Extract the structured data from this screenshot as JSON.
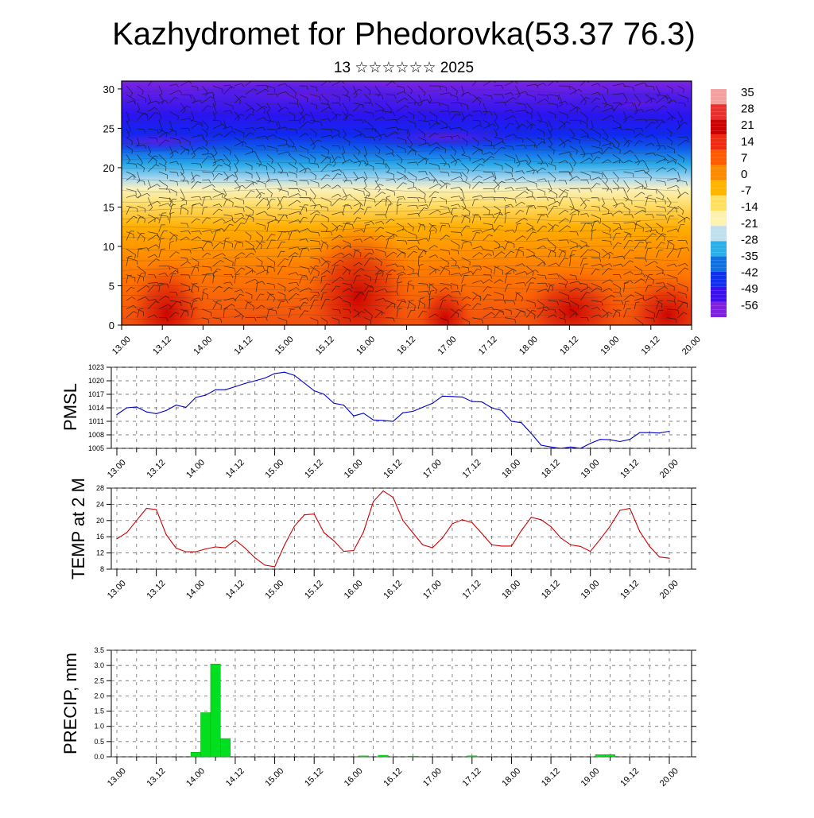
{
  "title": "Kazhydromet for Phedorovka(53.37 76.3)",
  "subtitle": "13 ☆☆☆☆☆☆ 2025",
  "time_ticks": [
    "13.00",
    "13.12",
    "14.00",
    "14.12",
    "15.00",
    "15.12",
    "16.00",
    "16.12",
    "17.00",
    "17.12",
    "18.00",
    "18.12",
    "19.00",
    "19.12",
    "20.00"
  ],
  "chart_data": [
    {
      "type": "heatmap",
      "name": "cross-section",
      "x": [
        "13.00",
        "13.12",
        "14.00",
        "14.12",
        "15.00",
        "15.12",
        "16.00",
        "16.12",
        "17.00",
        "17.12",
        "18.00",
        "18.12",
        "19.00",
        "19.12",
        "20.00"
      ],
      "y_ticks": [
        0,
        5,
        10,
        15,
        20,
        25,
        30
      ],
      "ylim": [
        0,
        31
      ],
      "colorbar": {
        "labels": [
          35,
          28,
          21,
          14,
          7,
          0,
          -7,
          -14,
          -21,
          -28,
          -35,
          -42,
          -49,
          -56
        ],
        "colors": [
          "#f4a0a0",
          "#e8302f",
          "#cc0000",
          "#ee2a10",
          "#ff5a00",
          "#ff8a00",
          "#ffb400",
          "#ffe060",
          "#fff2b0",
          "#bfe0ee",
          "#2ab0e8",
          "#1070e0",
          "#1030f0",
          "#3c10ee",
          "#8020e0"
        ]
      }
    },
    {
      "type": "line",
      "ylabel": "PMSL",
      "yticks": [
        1005,
        1008,
        1011,
        1014,
        1017,
        1020,
        1023
      ],
      "ylim": [
        1005,
        1023
      ],
      "color": "#0000cc",
      "x": [
        0,
        0.25,
        0.5,
        0.75,
        1,
        1.25,
        1.5,
        1.75,
        2,
        2.25,
        2.5,
        2.75,
        3,
        3.25,
        3.5,
        3.75,
        4,
        4.25,
        4.5,
        4.75,
        5,
        5.25,
        5.5,
        5.75,
        6,
        6.25,
        6.5,
        6.75,
        7,
        7.25,
        7.5,
        7.75,
        8,
        8.25,
        8.5,
        8.75,
        9,
        9.25,
        9.5,
        9.75,
        10,
        10.25,
        10.5,
        10.75,
        11,
        11.25,
        11.5,
        11.75,
        12,
        12.25,
        12.5,
        12.75,
        13,
        13.25,
        13.5,
        13.75,
        14
      ],
      "values": [
        1012.5,
        1014,
        1014.2,
        1013.1,
        1012.7,
        1013.4,
        1014.6,
        1014.1,
        1016.3,
        1016.8,
        1018,
        1018,
        1018.7,
        1019.4,
        1020,
        1020.6,
        1021.6,
        1021.9,
        1021.2,
        1019.5,
        1017.8,
        1017,
        1015,
        1014.6,
        1012.2,
        1012.8,
        1011.3,
        1011.2,
        1011,
        1012.9,
        1013.2,
        1014.1,
        1015,
        1016.6,
        1016.5,
        1016.4,
        1015.4,
        1015.3,
        1014,
        1013.4,
        1011,
        1010.7,
        1008.3,
        1005.7,
        1005.3,
        1005,
        1005.3,
        1005,
        1006.1,
        1007,
        1006.9,
        1006.5,
        1007,
        1008.5,
        1008.5,
        1008.4,
        1008.8
      ]
    },
    {
      "type": "line",
      "ylabel": "TEMP at 2 M",
      "yticks": [
        8,
        12,
        16,
        20,
        24,
        28
      ],
      "ylim": [
        8,
        28
      ],
      "color": "#cc0000",
      "x": [
        0,
        0.25,
        0.5,
        0.75,
        1,
        1.25,
        1.5,
        1.75,
        2,
        2.25,
        2.5,
        2.75,
        3,
        3.25,
        3.5,
        3.75,
        4,
        4.25,
        4.5,
        4.75,
        5,
        5.25,
        5.5,
        5.75,
        6,
        6.25,
        6.5,
        6.75,
        7,
        7.25,
        7.5,
        7.75,
        8,
        8.25,
        8.5,
        8.75,
        9,
        9.25,
        9.5,
        9.75,
        10,
        10.25,
        10.5,
        10.75,
        11,
        11.25,
        11.5,
        11.75,
        12,
        12.25,
        12.5,
        12.75,
        13,
        13.25,
        13.5,
        13.75,
        14
      ],
      "values": [
        15.5,
        17,
        20,
        23,
        22.7,
        16.5,
        13.2,
        12.3,
        12.3,
        13,
        13.5,
        13.3,
        15.2,
        13.2,
        10.8,
        9,
        8.6,
        14,
        18.6,
        21.4,
        21.6,
        17,
        15,
        12.4,
        12.6,
        17.2,
        24.7,
        27.3,
        25.7,
        20,
        17,
        14,
        13.3,
        15.7,
        19.2,
        20.2,
        19.5,
        16.8,
        14,
        13.7,
        13.7,
        17.5,
        20.8,
        20.2,
        18.5,
        15.7,
        14,
        13.6,
        12.4,
        15.4,
        18.6,
        22.5,
        23,
        17.3,
        13.6,
        11,
        10.7
      ]
    },
    {
      "type": "bar",
      "ylabel": "PRECIP, mm",
      "yticks": [
        "0.0",
        "0.5",
        "1.0",
        "1.5",
        "2.0",
        "2.5",
        "3.0",
        "3.5"
      ],
      "ylim": [
        0,
        3.5
      ],
      "color": "#00e020",
      "x": [
        2,
        2.25,
        2.5,
        2.75,
        6.25,
        6.75,
        7.5,
        9,
        12.25,
        12.5
      ],
      "values": [
        0.15,
        1.45,
        3.05,
        0.6,
        0.03,
        0.05,
        0.02,
        0.03,
        0.07,
        0.07
      ]
    }
  ]
}
